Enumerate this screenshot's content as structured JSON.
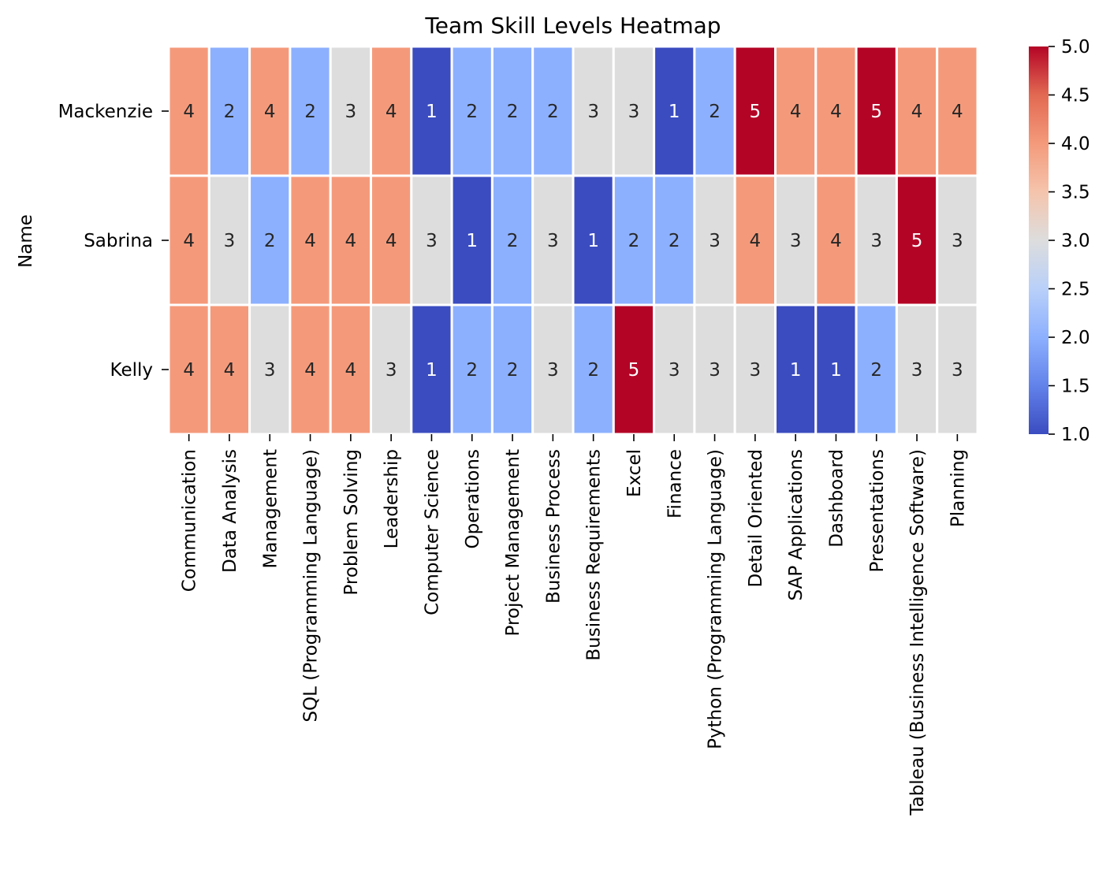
{
  "chart_data": {
    "type": "heatmap",
    "title": "Team Skill Levels Heatmap",
    "ylabel": "Name",
    "xlabel": "",
    "rows": [
      "Mackenzie",
      "Sabrina",
      "Kelly"
    ],
    "columns": [
      "Communication",
      "Data Analysis",
      "Management",
      "SQL (Programming Language)",
      "Problem Solving",
      "Leadership",
      "Computer Science",
      "Operations",
      "Project Management",
      "Business Process",
      "Business Requirements",
      "Excel",
      "Finance",
      "Python (Programming Language)",
      "Detail Oriented",
      "SAP Applications",
      "Dashboard",
      "Presentations",
      "Tableau (Business Intelligence Software)",
      "Planning"
    ],
    "values": [
      [
        4,
        2,
        4,
        2,
        3,
        4,
        1,
        2,
        2,
        2,
        3,
        3,
        1,
        2,
        5,
        4,
        4,
        5,
        4,
        4
      ],
      [
        4,
        3,
        2,
        4,
        4,
        4,
        3,
        1,
        2,
        3,
        1,
        2,
        2,
        3,
        4,
        3,
        4,
        3,
        5,
        3
      ],
      [
        4,
        4,
        3,
        4,
        4,
        3,
        1,
        2,
        2,
        3,
        2,
        5,
        3,
        3,
        3,
        1,
        1,
        2,
        3,
        3
      ]
    ],
    "colormap": "coolwarm",
    "vmin": 1.0,
    "vmax": 5.0,
    "colorbar_ticks": [
      "1.0",
      "1.5",
      "2.0",
      "2.5",
      "3.0",
      "3.5",
      "4.0",
      "4.5",
      "5.0"
    ],
    "value_colors": {
      "1": "#3b4cc0",
      "2": "#8db0fe",
      "3": "#dddddd",
      "4": "#f49a7b",
      "5": "#b40426"
    },
    "colorbar_gradient": [
      "#3b4cc0",
      "#6282ea",
      "#8db0fe",
      "#b9d0f9",
      "#dddddd",
      "#f5c4ac",
      "#f49a7b",
      "#e26952",
      "#b40426"
    ],
    "annotations": true
  }
}
